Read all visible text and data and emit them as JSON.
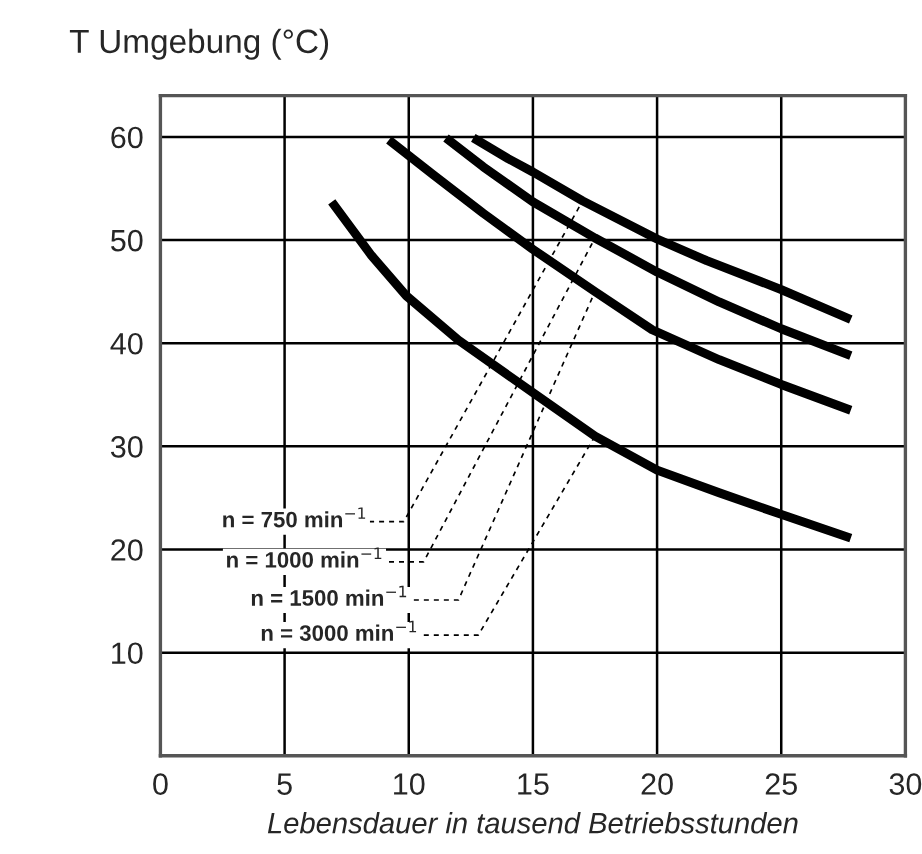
{
  "chart_data": {
    "type": "line",
    "ylabel": "T Umgebung (°C)",
    "xlabel": "Lebensdauer in tausend Betriebsstunden",
    "series": [
      {
        "name": "n = 750 min$^{−1}$",
        "color": "#000000",
        "x": [
          12.6,
          14,
          15,
          17,
          20,
          22,
          25,
          27.8
        ],
        "values": [
          59.9,
          57.9,
          56.6,
          53.8,
          50.1,
          48.0,
          45.2,
          42.3
        ]
      },
      {
        "name": "n = 1000 min$^{−1}$",
        "color": "#000000",
        "x": [
          11.5,
          13,
          15,
          17.5,
          20,
          22.5,
          25,
          27.8
        ],
        "values": [
          59.9,
          57.1,
          53.7,
          50.2,
          46.9,
          44.0,
          41.4,
          38.8
        ]
      },
      {
        "name": "n = 1500 min$^{−1}$",
        "color": "#000000",
        "x": [
          9.2,
          11,
          13,
          15,
          17.5,
          19.8,
          22.5,
          25,
          27.8
        ],
        "values": [
          59.7,
          56.3,
          52.6,
          49.1,
          45.0,
          41.3,
          38.4,
          36.0,
          33.5
        ]
      },
      {
        "name": "n = 3000 min$^{−1}$",
        "color": "#000000",
        "x": [
          6.9,
          8.5,
          9.9,
          12,
          15,
          17.5,
          20,
          22.5,
          25,
          27.8
        ],
        "values": [
          53.7,
          48.5,
          44.6,
          40.3,
          35.2,
          31.0,
          27.7,
          25.5,
          23.4,
          21.1
        ]
      }
    ],
    "xlim": [
      0,
      30
    ],
    "ylim": [
      0,
      64
    ],
    "xticks": [
      0,
      5,
      10,
      15,
      20,
      25,
      30
    ],
    "yticks": [
      10,
      20,
      30,
      40,
      50,
      60
    ],
    "grid": true,
    "legend": false,
    "marker": "none",
    "line_style": "solid"
  }
}
